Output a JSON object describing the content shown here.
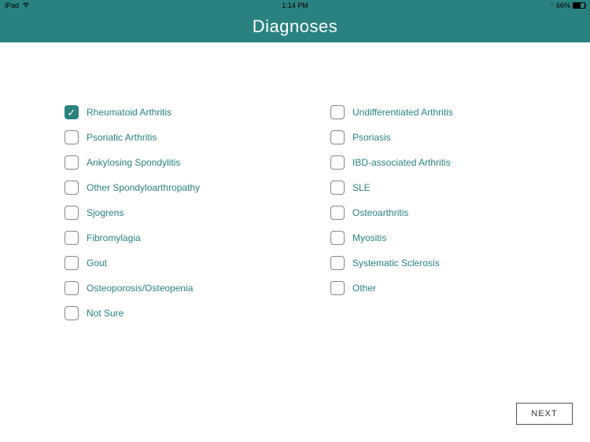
{
  "statusBar": {
    "device": "iPad",
    "time": "1:14 PM",
    "battery": "66%"
  },
  "header": {
    "title": "Diagnoses"
  },
  "leftColumn": [
    {
      "label": "Rheumatoid Arthritis",
      "checked": true
    },
    {
      "label": "Psoriatic Arthritis",
      "checked": false
    },
    {
      "label": "Ankylosing Spondylitis",
      "checked": false
    },
    {
      "label": "Other Spondyloarthropathy",
      "checked": false
    },
    {
      "label": "Sjogrens",
      "checked": false
    },
    {
      "label": "Fibromylagia",
      "checked": false
    },
    {
      "label": "Gout",
      "checked": false
    },
    {
      "label": "Osteoporosis/Osteopenia",
      "checked": false
    },
    {
      "label": "Not Sure",
      "checked": false
    }
  ],
  "rightColumn": [
    {
      "label": "Undifferentiated Arthritis",
      "checked": false
    },
    {
      "label": "Psoriasis",
      "checked": false
    },
    {
      "label": "IBD-associated Arthritis",
      "checked": false
    },
    {
      "label": "SLE",
      "checked": false
    },
    {
      "label": "Osteoarthritis",
      "checked": false
    },
    {
      "label": "Myositis",
      "checked": false
    },
    {
      "label": "Systematic Sclerosis",
      "checked": false
    },
    {
      "label": "Other",
      "checked": false
    }
  ],
  "footer": {
    "nextLabel": "NEXT"
  },
  "colors": {
    "teal": "#2a8280",
    "white": "#ffffff",
    "checkboxBorder": "#888888"
  }
}
